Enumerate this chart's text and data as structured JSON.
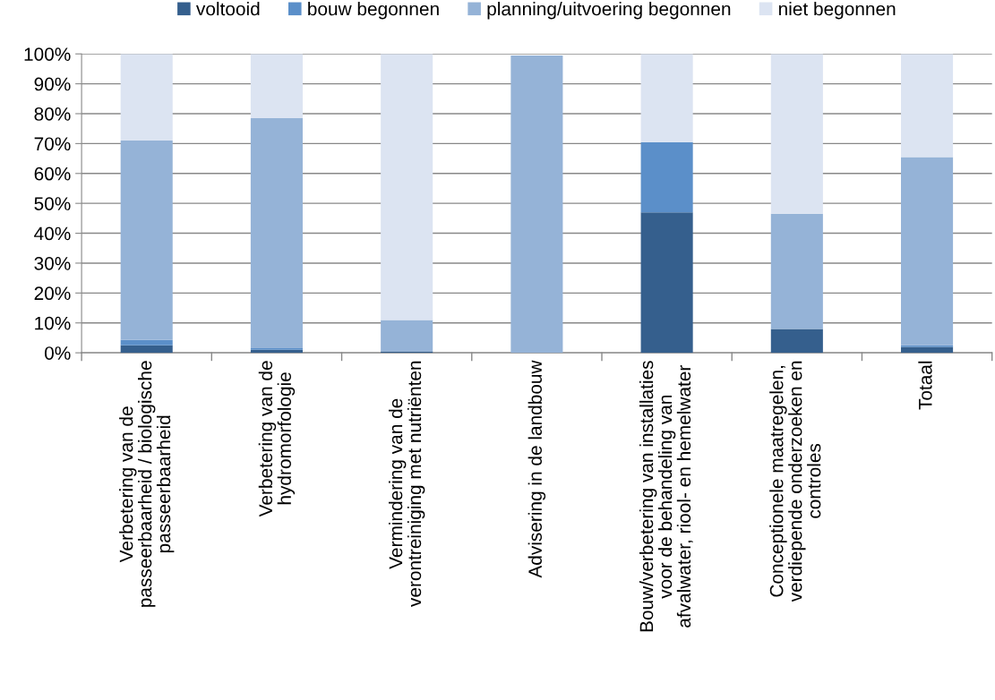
{
  "chart_data": {
    "type": "bar",
    "stacked": true,
    "categories": [
      "Verbetering van de\npasseerbaarheid / biologische\npasseerbaarheid",
      "Verbetering van de\nhydromorfologie",
      "Vermindering van de\nverontreiniging met nutriënten",
      "Advisering in de landbouw",
      "Bouw/verbetering van installaties\nvoor de behandeling van\nafvalwater, riool- en hemelwater",
      "Conceptionele maatregelen,\nverdiepende onderzoeken en\ncontroles",
      "Totaal"
    ],
    "series": [
      {
        "name": "voltooid",
        "color": "#355f8d",
        "values": [
          2.5,
          1,
          0.5,
          0,
          47,
          8,
          2
        ]
      },
      {
        "name": "bouw begonnen",
        "color": "#5b8fc9",
        "values": [
          1.8,
          0.5,
          0,
          0,
          23.5,
          0,
          0.5
        ]
      },
      {
        "name": "planning/uitvoering begonnen",
        "color": "#95b3d7",
        "values": [
          66.7,
          77,
          10.5,
          99.5,
          0,
          38.5,
          63
        ]
      },
      {
        "name": "niet begonnen",
        "color": "#dce4f2",
        "values": [
          29,
          21.5,
          89,
          null,
          29.5,
          53.5,
          34.5
        ]
      }
    ],
    "ylim": [
      0,
      100
    ],
    "yticks": [
      {
        "value": 0,
        "label": "0%"
      },
      {
        "value": 10,
        "label": "10%"
      },
      {
        "value": 20,
        "label": "20%"
      },
      {
        "value": 30,
        "label": "30%"
      },
      {
        "value": 40,
        "label": "40%"
      },
      {
        "value": 50,
        "label": "50%"
      },
      {
        "value": 60,
        "label": "60%"
      },
      {
        "value": 70,
        "label": "70%"
      },
      {
        "value": 80,
        "label": "80%"
      },
      {
        "value": 90,
        "label": "90%"
      },
      {
        "value": 100,
        "label": "100%"
      }
    ],
    "grid": "y",
    "legend": "top"
  }
}
